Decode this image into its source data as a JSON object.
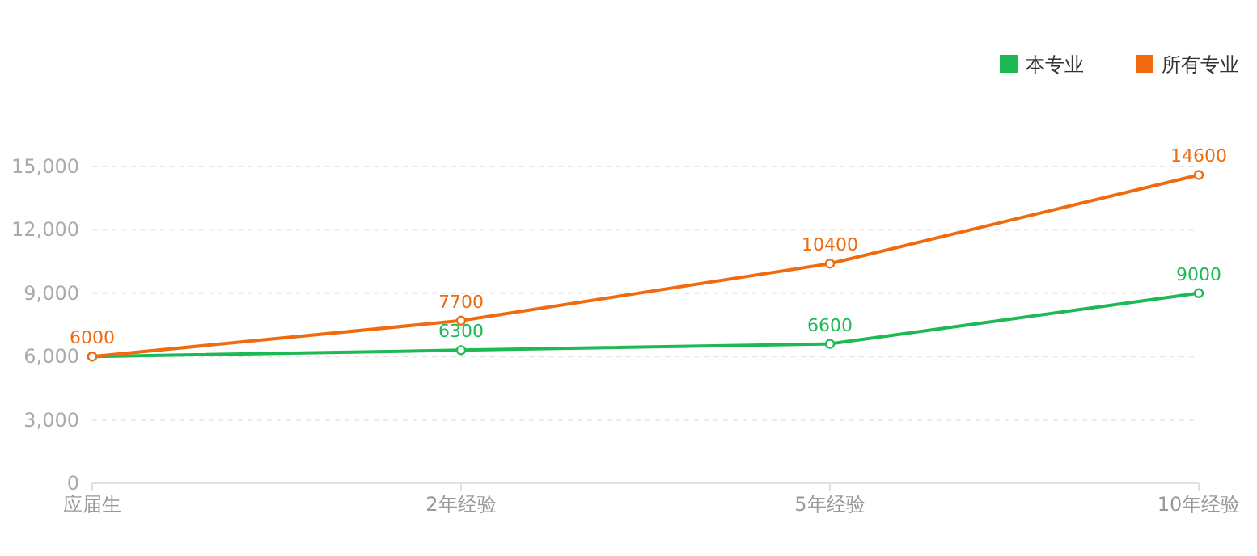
{
  "chart_data": {
    "type": "line",
    "categories": [
      "应届生",
      "2年经验",
      "5年经验",
      "10年经验"
    ],
    "series": [
      {
        "name": "本专业",
        "color": "#1db954",
        "values": [
          6000,
          6300,
          6600,
          9000
        ],
        "value_labels": [
          null,
          "6300",
          "6600",
          "9000"
        ]
      },
      {
        "name": "所有专业",
        "color": "#f06a0f",
        "values": [
          6000,
          7700,
          10400,
          14600
        ],
        "value_labels": [
          "6000",
          "7700",
          "10400",
          "14600"
        ]
      }
    ],
    "ylim": [
      0,
      15000
    ],
    "yticks": [
      {
        "value": 0,
        "label": "0"
      },
      {
        "value": 3000,
        "label": "3,000"
      },
      {
        "value": 6000,
        "label": "6,000"
      },
      {
        "value": 9000,
        "label": "9,000"
      },
      {
        "value": 12000,
        "label": "12,000"
      },
      {
        "value": 15000,
        "label": "15,000"
      }
    ],
    "grid": "y",
    "legend": "top right",
    "marker": "circle"
  }
}
